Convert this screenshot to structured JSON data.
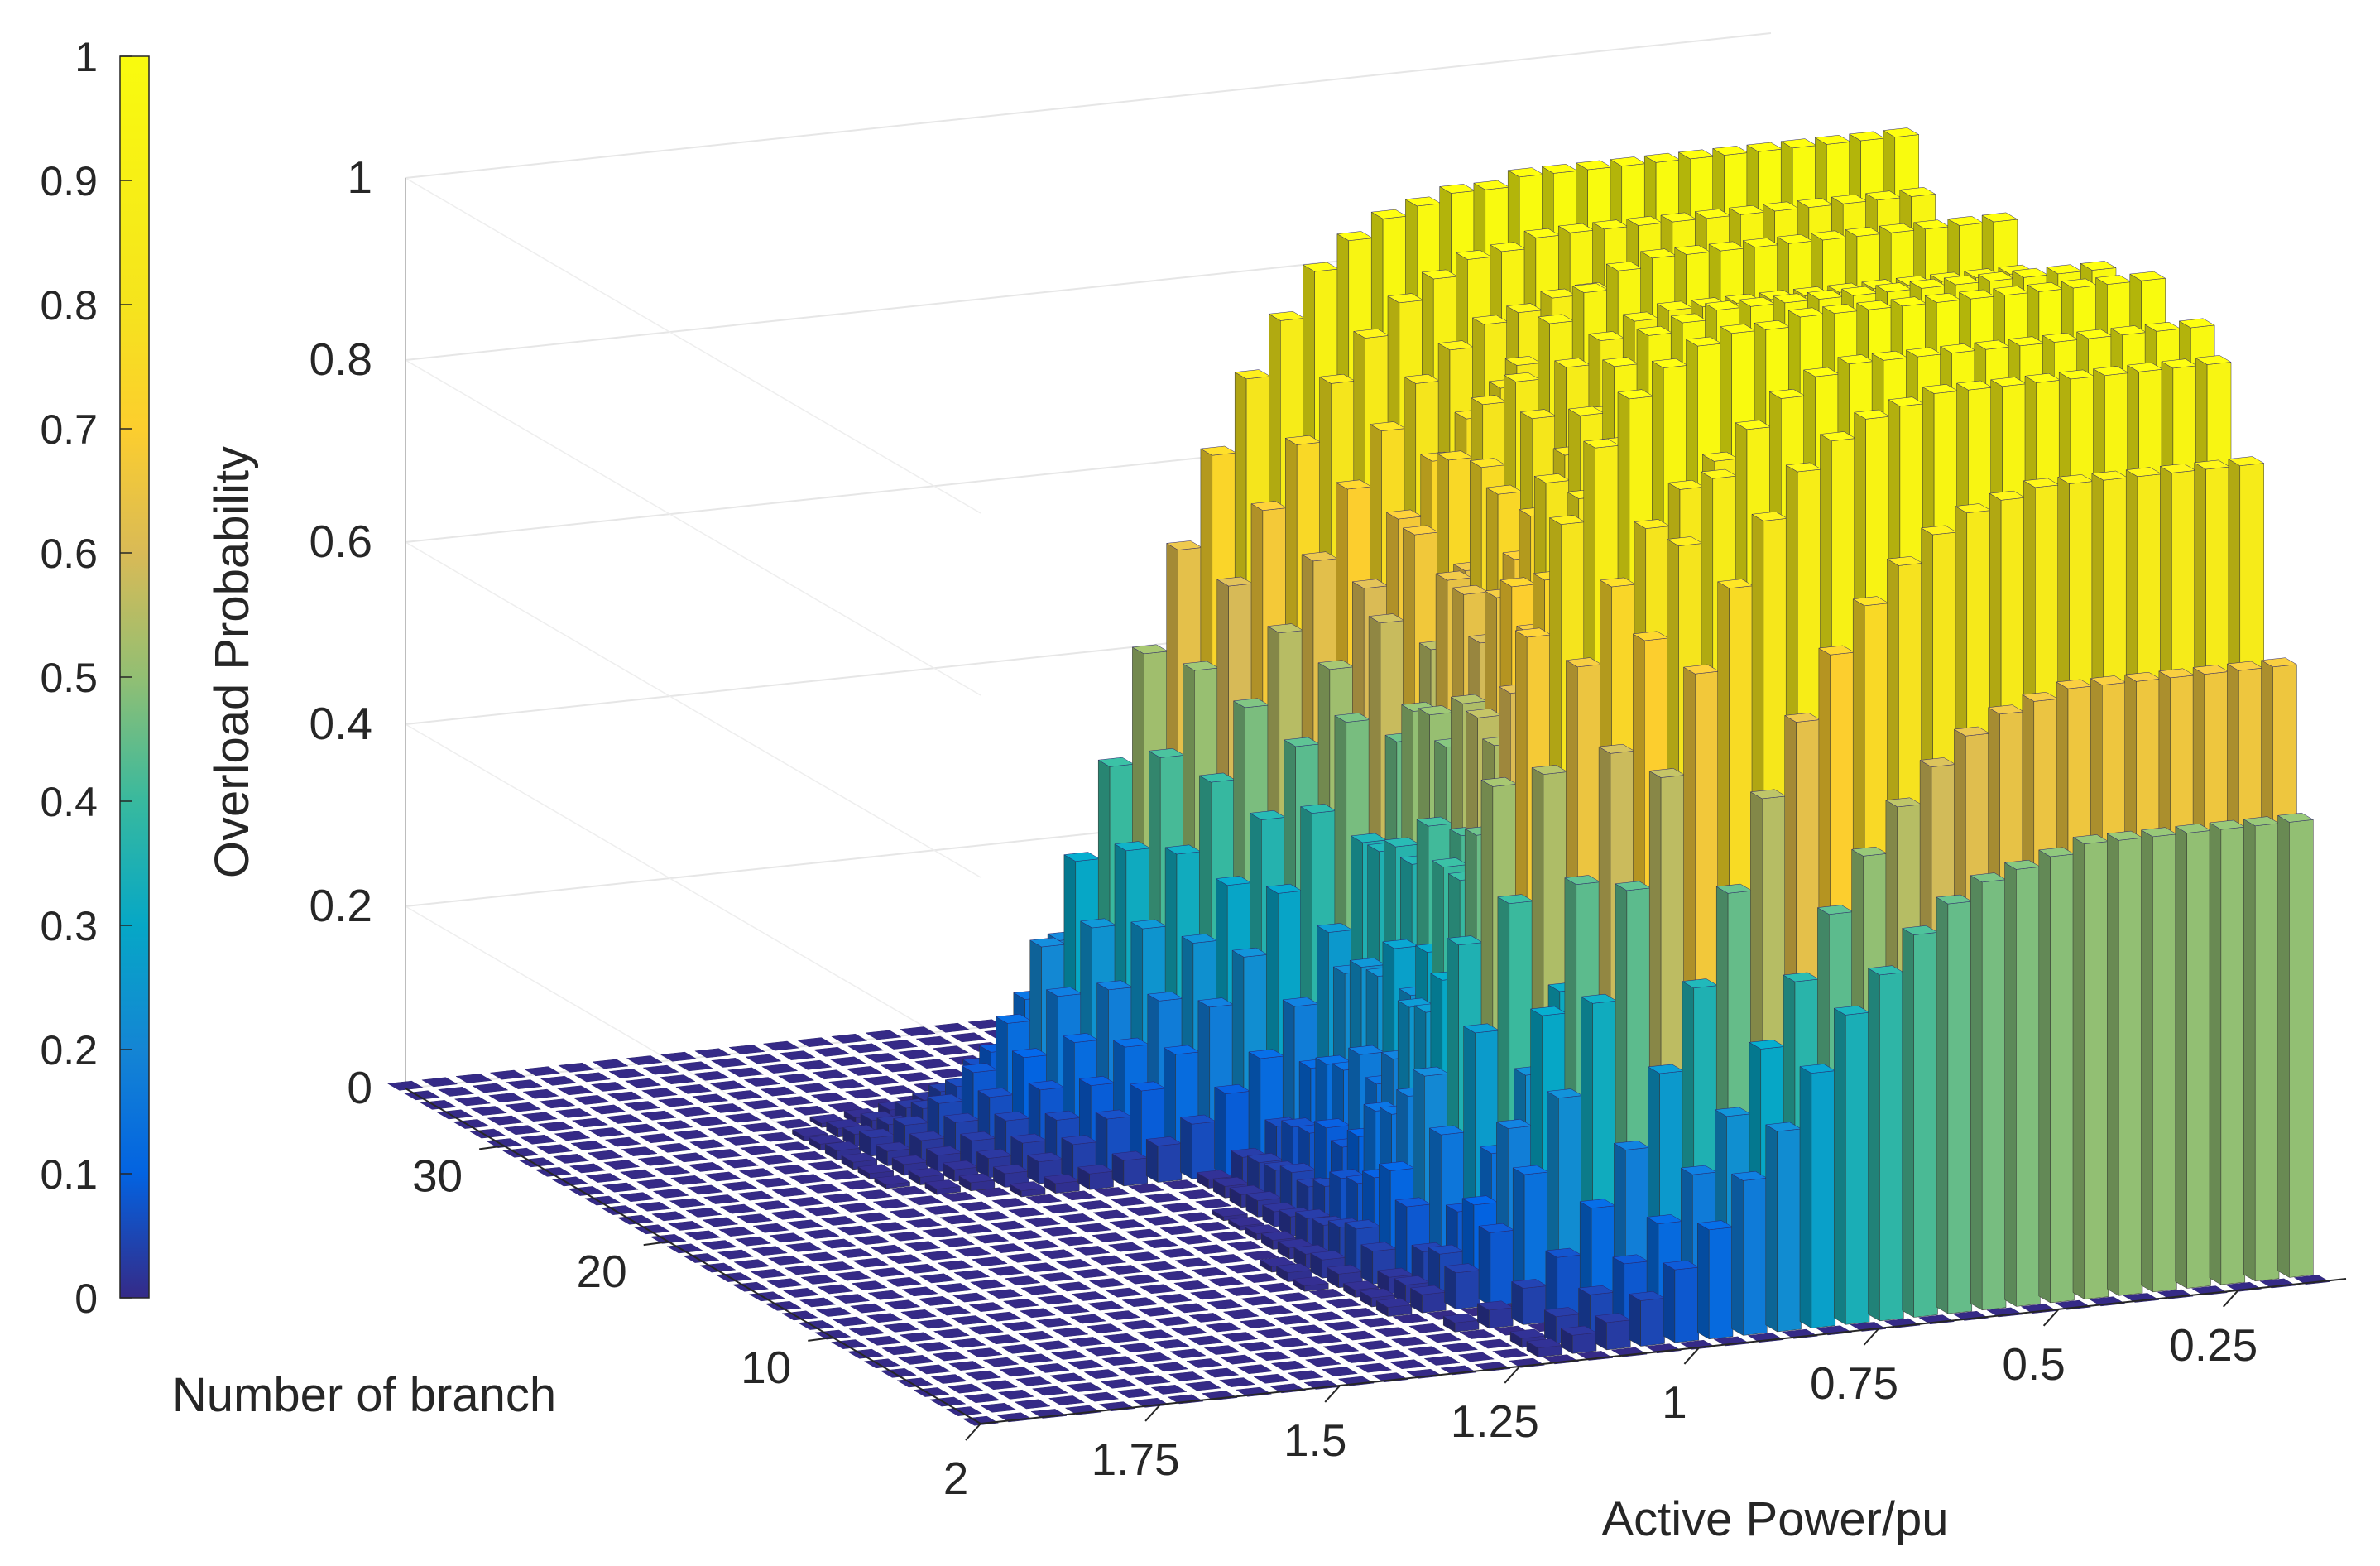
{
  "chart_data": {
    "type": "bar3d",
    "title": "",
    "zlabel": "Overload Probability",
    "xlabel": "Active Power/pu",
    "ylabel": "Number of branch",
    "zlim": [
      0,
      1
    ],
    "z_ticks": [
      "0",
      "0.2",
      "0.4",
      "0.6",
      "0.8",
      "1"
    ],
    "x_ticks": [
      "2",
      "1.75",
      "1.5",
      "1.25",
      "1",
      "0.75",
      "0.5",
      "0.25"
    ],
    "y_ticks": [
      "10",
      "20",
      "30"
    ],
    "colorbar": {
      "colormap": "parula",
      "ticks": [
        "0",
        "0.1",
        "0.2",
        "0.3",
        "0.4",
        "0.5",
        "0.6",
        "0.7",
        "0.8",
        "0.9",
        "1"
      ],
      "range": [
        0,
        1
      ]
    },
    "grid": true,
    "x_range": [
      2,
      0.1
    ],
    "y_range": [
      1,
      36
    ],
    "series": [
      {
        "name": "",
        "description_note": "",
        "branch_profiles": [
          {
            "branch": 1,
            "values": [
              0,
              0,
              0,
              0,
              0,
              0,
              0,
              0,
              0,
              0,
              0,
              0,
              0,
              0,
              0,
              0,
              0,
              0,
              0,
              0,
              0,
              0,
              0,
              0,
              0,
              0,
              0,
              0,
              0,
              0,
              0,
              0,
              0,
              0,
              0,
              0,
              0,
              0,
              0,
              0
            ]
          },
          {
            "branch": 2,
            "values": [
              0,
              0,
              0,
              0,
              0,
              0,
              0,
              0,
              0,
              0,
              0,
              0,
              0,
              0,
              0,
              0,
              0,
              0.01,
              0.02,
              0.03,
              0.05,
              0.08,
              0.12,
              0.17,
              0.22,
              0.28,
              0.34,
              0.38,
              0.42,
              0.45,
              0.47,
              0.48,
              0.49,
              0.5,
              0.5,
              0.5,
              0.5,
              0.5,
              0.5,
              0.5
            ]
          },
          {
            "branch": 3,
            "values": [
              0,
              0,
              0,
              0,
              0,
              0,
              0,
              0,
              0,
              0,
              0,
              0,
              0,
              0,
              0,
              0,
              0,
              0.01,
              0.03,
              0.05,
              0.08,
              0.12,
              0.17,
              0.23,
              0.3,
              0.37,
              0.44,
              0.5,
              0.55,
              0.59,
              0.62,
              0.64,
              0.65,
              0.66,
              0.66,
              0.66,
              0.66,
              0.66,
              0.66,
              0.66
            ]
          },
          {
            "branch": 5,
            "values": [
              0,
              0,
              0,
              0,
              0,
              0,
              0,
              0,
              0,
              0,
              0,
              0,
              0,
              0,
              0,
              0,
              0.01,
              0.02,
              0.04,
              0.07,
              0.12,
              0.18,
              0.26,
              0.35,
              0.45,
              0.55,
              0.63,
              0.7,
              0.75,
              0.79,
              0.82,
              0.84,
              0.85,
              0.86,
              0.86,
              0.86,
              0.86,
              0.86,
              0.86,
              0.86
            ]
          },
          {
            "branch": 7,
            "values": [
              0,
              0,
              0,
              0,
              0,
              0,
              0,
              0,
              0,
              0,
              0,
              0,
              0,
              0,
              0,
              0.01,
              0.02,
              0.04,
              0.08,
              0.14,
              0.22,
              0.32,
              0.44,
              0.56,
              0.67,
              0.76,
              0.83,
              0.88,
              0.91,
              0.93,
              0.94,
              0.95,
              0.95,
              0.95,
              0.95,
              0.95,
              0.95,
              0.95,
              0.95,
              0.95
            ]
          },
          {
            "branch": 8,
            "values": [
              0,
              0,
              0,
              0,
              0,
              0,
              0,
              0,
              0,
              0,
              0,
              0,
              0,
              0,
              0,
              0.01,
              0.02,
              0.05,
              0.1,
              0.18,
              0.3,
              0.44,
              0.58,
              0.7,
              0.8,
              0.87,
              0.92,
              0.95,
              0.97,
              0.98,
              0.98,
              0.98,
              0.98,
              0.98,
              0.98,
              0.98,
              0.98,
              0.98,
              0.98,
              0.98
            ]
          },
          {
            "branch": 11,
            "values": [
              0,
              0,
              0,
              0,
              0,
              0,
              0,
              0,
              0,
              0,
              0,
              0,
              0,
              0,
              0.01,
              0.02,
              0.05,
              0.11,
              0.21,
              0.35,
              0.52,
              0.68,
              0.8,
              0.88,
              0.93,
              0.96,
              0.98,
              0.99,
              0.99,
              1,
              1,
              1,
              1,
              1,
              1,
              1,
              1,
              1,
              1,
              1
            ]
          },
          {
            "branch": 14,
            "values": [
              0,
              0,
              0,
              0,
              0,
              0,
              0,
              0,
              0,
              0,
              0,
              0,
              0,
              0,
              0,
              0.01,
              0.03,
              0.07,
              0.14,
              0.25,
              0.4,
              0.56,
              0.7,
              0.81,
              0.88,
              0.93,
              0.96,
              0.97,
              0.98,
              0.98,
              0.98,
              0.98,
              0.98,
              0.98,
              0.98,
              0.98,
              0.98,
              0.98,
              0.98,
              0.98
            ]
          },
          {
            "branch": 20,
            "values": [
              0,
              0,
              0,
              0,
              0,
              0,
              0,
              0,
              0,
              0,
              0,
              0,
              0,
              0,
              0,
              0,
              0.01,
              0.03,
              0.06,
              0.12,
              0.22,
              0.35,
              0.5,
              0.64,
              0.76,
              0.85,
              0.91,
              0.94,
              0.96,
              0.97,
              0.97,
              0.97,
              0.97,
              0.97,
              0.97,
              0.97,
              0.97,
              0.97,
              0.97,
              0.97
            ]
          },
          {
            "branch": 26,
            "values": [
              0,
              0,
              0,
              0,
              0,
              0,
              0,
              0,
              0.01,
              0.02,
              0.03,
              0.05,
              0.08,
              0.13,
              0.21,
              0.3,
              0.4,
              0.52,
              0.63,
              0.73,
              0.81,
              0.87,
              0.92,
              0.95,
              0.97,
              0.98,
              0.99,
              0.99,
              1,
              1,
              1,
              1,
              1,
              1,
              1,
              1,
              1,
              1,
              1,
              1
            ]
          },
          {
            "branch": 30,
            "values": [
              0,
              0,
              0,
              0,
              0,
              0,
              0,
              0,
              0,
              0,
              0,
              0,
              0,
              0,
              0,
              0,
              0,
              0.01,
              0.02,
              0.04,
              0.07,
              0.12,
              0.19,
              0.28,
              0.38,
              0.49,
              0.59,
              0.68,
              0.75,
              0.8,
              0.84,
              0.87,
              0.89,
              0.9,
              0.9,
              0.9,
              0.9,
              0.9,
              0.9,
              0.9
            ]
          },
          {
            "branch": 33,
            "values": [
              0,
              0,
              0,
              0,
              0,
              0,
              0,
              0,
              0,
              0,
              0,
              0,
              0,
              0,
              0,
              0,
              0,
              0,
              0.01,
              0.02,
              0.04,
              0.07,
              0.12,
              0.19,
              0.27,
              0.36,
              0.45,
              0.53,
              0.6,
              0.66,
              0.71,
              0.75,
              0.78,
              0.8,
              0.81,
              0.82,
              0.82,
              0.82,
              0.82,
              0.82
            ]
          }
        ]
      }
    ]
  }
}
